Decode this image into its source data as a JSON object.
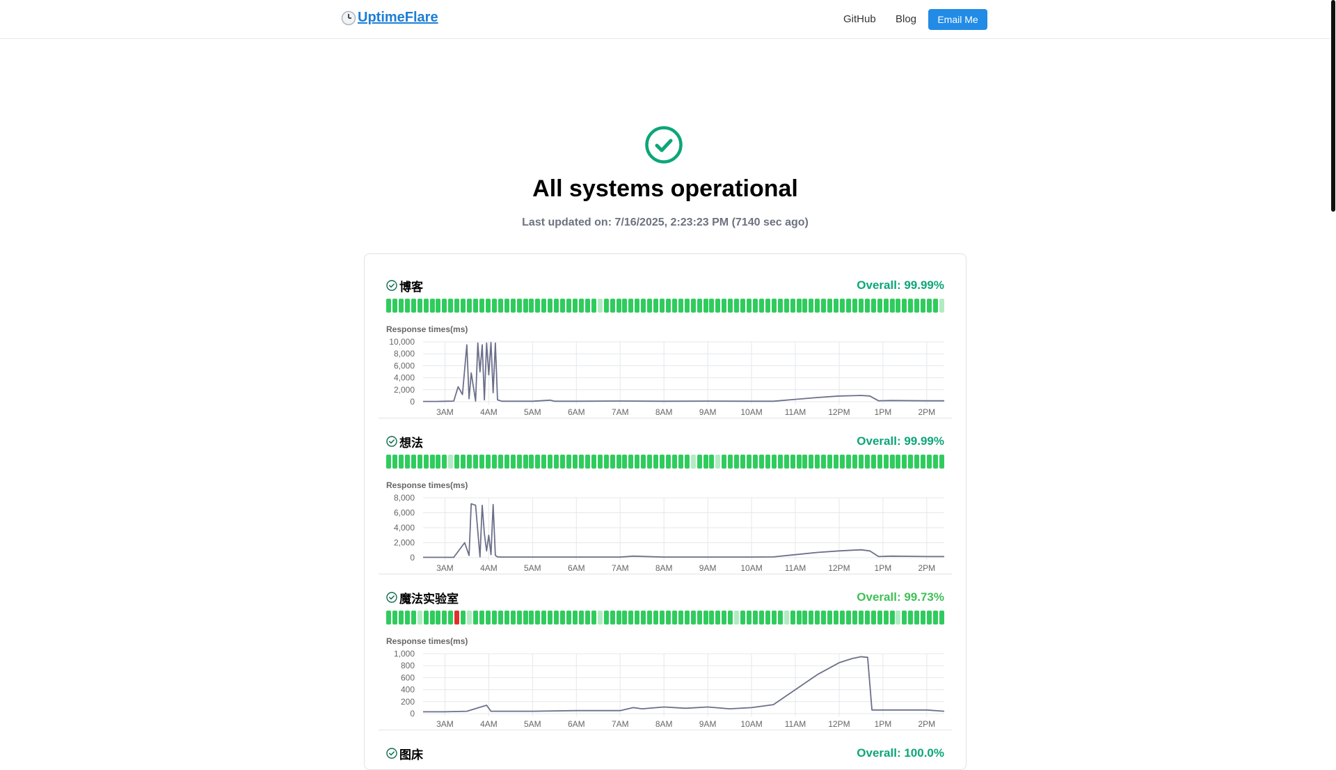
{
  "header": {
    "logo": "UptimeFlare",
    "nav": {
      "github": "GitHub",
      "blog": "Blog",
      "email": "Email Me"
    }
  },
  "status": {
    "title": "All systems operational",
    "last_updated": "Last updated on: 7/16/2025, 2:23:23 PM (7140 sec ago)"
  },
  "colors": {
    "up": "#2fcc5d",
    "partial": "#b2ebc3",
    "down": "#e03131",
    "overall_dark": "#0ca678",
    "overall_light": "#40c057",
    "line": "#6b6f8a"
  },
  "monitors": [
    {
      "name": "博客",
      "overall": "Overall: 99.99%",
      "overall_color": "#0ca678",
      "response_label": "Response times(ms)",
      "bars": [
        "u",
        "u",
        "u",
        "u",
        "u",
        "u",
        "u",
        "u",
        "u",
        "u",
        "u",
        "u",
        "u",
        "u",
        "u",
        "u",
        "u",
        "u",
        "u",
        "u",
        "u",
        "u",
        "u",
        "u",
        "u",
        "u",
        "u",
        "u",
        "u",
        "u",
        "u",
        "u",
        "u",
        "u",
        "p",
        "u",
        "u",
        "u",
        "u",
        "u",
        "u",
        "u",
        "u",
        "u",
        "u",
        "u",
        "u",
        "u",
        "u",
        "u",
        "u",
        "u",
        "u",
        "u",
        "u",
        "u",
        "u",
        "u",
        "u",
        "u",
        "u",
        "u",
        "u",
        "u",
        "u",
        "u",
        "u",
        "u",
        "u",
        "u",
        "u",
        "u",
        "u",
        "u",
        "u",
        "u",
        "u",
        "u",
        "u",
        "u",
        "u",
        "u",
        "u",
        "u",
        "u",
        "u",
        "u",
        "u",
        "u",
        "p"
      ]
    },
    {
      "name": "想法",
      "overall": "Overall: 99.99%",
      "overall_color": "#0ca678",
      "response_label": "Response times(ms)",
      "bars": [
        "u",
        "u",
        "u",
        "u",
        "u",
        "u",
        "u",
        "u",
        "u",
        "u",
        "p",
        "u",
        "u",
        "u",
        "u",
        "u",
        "u",
        "u",
        "u",
        "u",
        "u",
        "u",
        "u",
        "u",
        "u",
        "u",
        "u",
        "u",
        "u",
        "u",
        "u",
        "u",
        "u",
        "u",
        "u",
        "u",
        "u",
        "u",
        "u",
        "u",
        "u",
        "u",
        "u",
        "u",
        "u",
        "u",
        "u",
        "u",
        "u",
        "p",
        "u",
        "u",
        "u",
        "p",
        "u",
        "u",
        "u",
        "u",
        "u",
        "u",
        "u",
        "u",
        "u",
        "u",
        "u",
        "u",
        "u",
        "u",
        "u",
        "u",
        "u",
        "u",
        "u",
        "u",
        "u",
        "u",
        "u",
        "u",
        "u",
        "u",
        "u",
        "u",
        "u",
        "u",
        "u",
        "u",
        "u",
        "u",
        "u",
        "u"
      ]
    },
    {
      "name": "魔法实验室",
      "overall": "Overall: 99.73%",
      "overall_color": "#40c057",
      "response_label": "Response times(ms)",
      "bars": [
        "u",
        "u",
        "u",
        "u",
        "u",
        "p",
        "u",
        "u",
        "u",
        "u",
        "u",
        "d",
        "u",
        "p",
        "u",
        "u",
        "u",
        "u",
        "u",
        "u",
        "u",
        "u",
        "u",
        "u",
        "u",
        "u",
        "u",
        "u",
        "u",
        "u",
        "u",
        "u",
        "u",
        "u",
        "p",
        "u",
        "u",
        "u",
        "u",
        "u",
        "u",
        "u",
        "u",
        "u",
        "u",
        "u",
        "u",
        "u",
        "u",
        "u",
        "u",
        "u",
        "u",
        "u",
        "u",
        "u",
        "p",
        "u",
        "u",
        "u",
        "u",
        "u",
        "u",
        "u",
        "p",
        "u",
        "u",
        "u",
        "u",
        "u",
        "u",
        "u",
        "u",
        "u",
        "u",
        "u",
        "u",
        "u",
        "u",
        "u",
        "u",
        "u",
        "p",
        "u",
        "u",
        "u",
        "u",
        "u",
        "u",
        "u"
      ]
    },
    {
      "name": "图床",
      "overall": "Overall: 100.0%",
      "overall_color": "#0ca678",
      "response_label": "",
      "bars": []
    }
  ],
  "chart_data": [
    {
      "type": "line",
      "ylabel": "Response times(ms)",
      "ylim": [
        0,
        10000
      ],
      "yticks": [
        "10,000",
        "8,000",
        "6,000",
        "4,000",
        "2,000",
        "0"
      ],
      "xticks": [
        "3AM",
        "4AM",
        "5AM",
        "6AM",
        "7AM",
        "8AM",
        "9AM",
        "10AM",
        "11AM",
        "12PM",
        "1PM",
        "2PM"
      ],
      "x_hours": [
        2.5,
        2.8,
        3.2,
        3.3,
        3.4,
        3.5,
        3.55,
        3.6,
        3.7,
        3.75,
        3.8,
        3.85,
        3.9,
        3.95,
        4.0,
        4.05,
        4.1,
        4.15,
        4.2,
        4.3,
        5.0,
        5.4,
        5.5,
        6.0,
        7.0,
        8.0,
        9.0,
        10.0,
        10.5,
        11.0,
        11.5,
        12.0,
        12.3,
        12.5,
        12.7,
        12.9,
        13.2,
        14.0,
        14.4
      ],
      "values": [
        50,
        50,
        100,
        2500,
        1200,
        9500,
        500,
        4800,
        100,
        9800,
        5000,
        9500,
        300,
        9800,
        4500,
        9900,
        1500,
        9800,
        300,
        80,
        80,
        250,
        80,
        80,
        120,
        80,
        100,
        80,
        80,
        400,
        700,
        950,
        1000,
        1050,
        950,
        150,
        200,
        150,
        150
      ]
    },
    {
      "type": "line",
      "ylabel": "Response times(ms)",
      "ylim": [
        0,
        8000
      ],
      "yticks": [
        "8,000",
        "6,000",
        "4,000",
        "2,000",
        "0"
      ],
      "xticks": [
        "3AM",
        "4AM",
        "5AM",
        "6AM",
        "7AM",
        "8AM",
        "9AM",
        "10AM",
        "11AM",
        "12PM",
        "1PM",
        "2PM"
      ],
      "x_hours": [
        2.5,
        3.2,
        3.45,
        3.55,
        3.6,
        3.7,
        3.8,
        3.85,
        3.9,
        3.95,
        4.0,
        4.05,
        4.1,
        4.15,
        4.2,
        4.3,
        5.0,
        6.0,
        7.0,
        7.3,
        8.0,
        9.0,
        10.0,
        10.5,
        11.0,
        11.5,
        12.0,
        12.3,
        12.5,
        12.7,
        12.9,
        13.2,
        14.0,
        14.4
      ],
      "values": [
        50,
        50,
        2000,
        300,
        7200,
        7000,
        100,
        7000,
        3200,
        900,
        3000,
        400,
        7100,
        300,
        100,
        80,
        80,
        80,
        80,
        200,
        80,
        80,
        80,
        100,
        400,
        700,
        900,
        1000,
        1050,
        900,
        150,
        200,
        150,
        150
      ]
    },
    {
      "type": "line",
      "ylabel": "Response times(ms)",
      "ylim": [
        0,
        1000
      ],
      "yticks": [
        "1,000",
        "800",
        "600",
        "400",
        "200",
        "0"
      ],
      "xticks": [
        "3AM",
        "4AM",
        "5AM",
        "6AM",
        "7AM",
        "8AM",
        "9AM",
        "10AM",
        "11AM",
        "12PM",
        "1PM",
        "2PM"
      ],
      "x_hours": [
        2.5,
        3.0,
        3.5,
        3.95,
        4.05,
        4.5,
        5.0,
        6.0,
        7.0,
        7.3,
        7.5,
        8.0,
        8.5,
        9.0,
        9.5,
        10.0,
        10.5,
        11.0,
        11.5,
        12.0,
        12.3,
        12.5,
        12.65,
        12.75,
        13.0,
        13.5,
        14.0,
        14.4
      ],
      "values": [
        30,
        30,
        40,
        140,
        40,
        40,
        40,
        50,
        50,
        100,
        80,
        110,
        90,
        110,
        80,
        100,
        150,
        400,
        650,
        850,
        920,
        950,
        940,
        60,
        60,
        60,
        60,
        40
      ]
    }
  ]
}
